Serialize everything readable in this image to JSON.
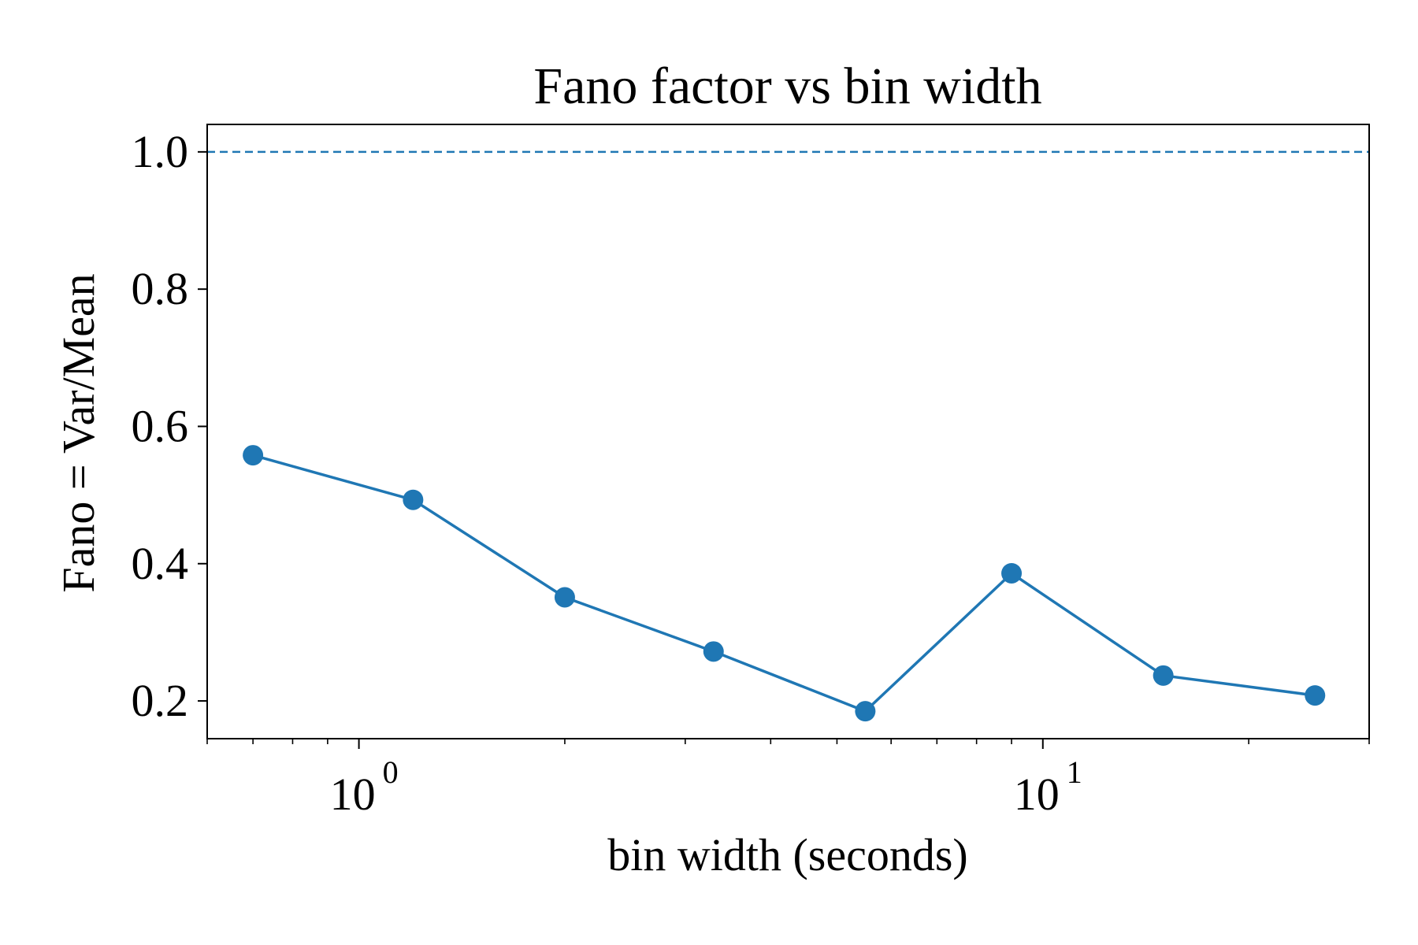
{
  "chart_data": {
    "type": "line",
    "title": "Fano factor vs bin width",
    "xlabel": "bin width (seconds)",
    "ylabel": "Fano = Var/Mean",
    "x_scale": "log",
    "xlim": [
      0.6,
      30
    ],
    "ylim": [
      0.145,
      1.04
    ],
    "grid": false,
    "x_major_ticks": [
      {
        "value": 1,
        "base": "10",
        "exp": "0"
      },
      {
        "value": 10,
        "base": "10",
        "exp": "1"
      }
    ],
    "x_minor_ticks": [
      0.6,
      0.7,
      0.8,
      0.9,
      2,
      3,
      4,
      5,
      6,
      7,
      8,
      9,
      20,
      30
    ],
    "y_ticks": [
      {
        "value": 0.2,
        "label": "0.2"
      },
      {
        "value": 0.4,
        "label": "0.4"
      },
      {
        "value": 0.6,
        "label": "0.6"
      },
      {
        "value": 0.8,
        "label": "0.8"
      },
      {
        "value": 1.0,
        "label": "1.0"
      }
    ],
    "reference_line": {
      "y": 1.0,
      "style": "dashed",
      "color": "#1f77b4"
    },
    "series": [
      {
        "color": "#1f77b4",
        "marker": "circle",
        "x": [
          0.7,
          1.2,
          2.0,
          3.3,
          5.5,
          9.0,
          15.0,
          25.0
        ],
        "y": [
          0.558,
          0.493,
          0.351,
          0.272,
          0.185,
          0.386,
          0.237,
          0.208
        ]
      }
    ]
  }
}
